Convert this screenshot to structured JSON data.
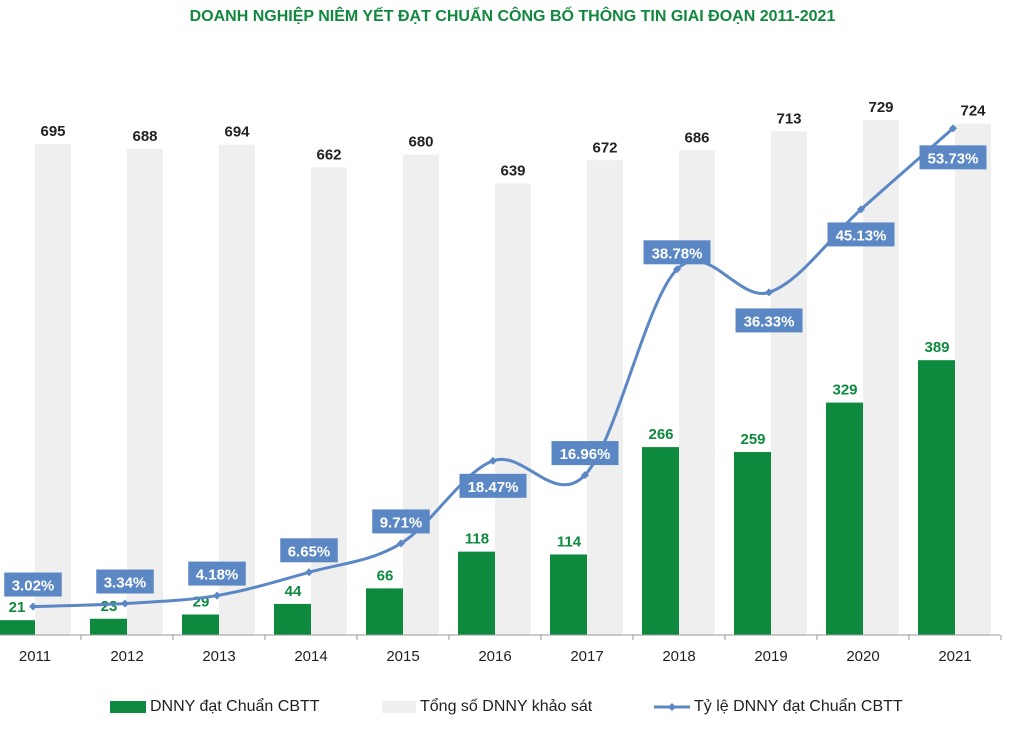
{
  "chart_data": {
    "type": "bar+line",
    "title": "DOANH NGHIỆP NIÊM YẾT ĐẠT CHUẨN CÔNG BỐ THÔNG TIN GIAI ĐOẠN 2011-2021",
    "categories": [
      "2011",
      "2012",
      "2013",
      "2014",
      "2015",
      "2016",
      "2017",
      "2018",
      "2019",
      "2020",
      "2021"
    ],
    "series": [
      {
        "name": "DNNY đạt Chuẩn CBTT",
        "type": "bar",
        "color": "#0e8a3e",
        "values": [
          21,
          23,
          29,
          44,
          66,
          118,
          114,
          266,
          259,
          329,
          389
        ]
      },
      {
        "name": "Tổng số DNNY khảo sát",
        "type": "bar",
        "color": "#efefef",
        "values": [
          695,
          688,
          694,
          662,
          680,
          639,
          672,
          686,
          713,
          729,
          724
        ]
      },
      {
        "name": "Tỷ lệ DNNY đạt Chuẩn CBTT",
        "type": "line",
        "axis": "secondary",
        "color": "#5b87c5",
        "values": [
          3.02,
          3.34,
          4.18,
          6.65,
          9.71,
          18.47,
          16.96,
          38.78,
          36.33,
          45.13,
          53.73
        ],
        "labels": [
          "3.02%",
          "3.34%",
          "4.18%",
          "6.65%",
          "9.71%",
          "18.47%",
          "16.96%",
          "38.78%",
          "36.33%",
          "45.13%",
          "53.73%"
        ]
      }
    ],
    "legend_position": "bottom",
    "grid": false
  }
}
